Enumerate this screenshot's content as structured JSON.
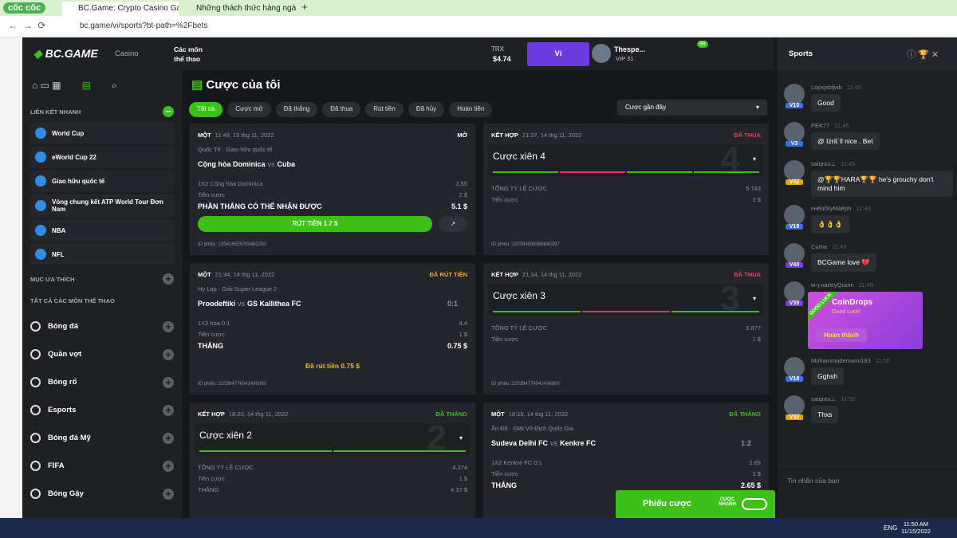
{
  "browser": {
    "brand": "cốc cốc",
    "tabs": [
      "BC.Game: Crypto Casino Gam",
      "Những thách thức hàng ngà"
    ],
    "url": "bc.game/vi/sports?bt-path=%2Fbets"
  },
  "header": {
    "logo": "BC.GAME",
    "casino": "Casino",
    "sports": "Các môn thể thao",
    "currency": "TRX",
    "balance": "$4.74",
    "wallet": "Ví",
    "user": "Thespe...",
    "vip": "VIP 31",
    "notifications": "99"
  },
  "sidebar": {
    "quick_title": "LIÊN KẾT NHANH",
    "quick_links": [
      "World Cup",
      "eWorld Cup 22",
      "Giao hữu quốc tế",
      "Vòng chung kết ATP World Tour Đơn Nam",
      "NBA",
      "NFL"
    ],
    "favorites": "MỤC ƯA THÍCH",
    "all_sports": "TẤT CẢ CÁC MÔN THỂ THAO",
    "sports": [
      "Bóng đá",
      "Quần vợt",
      "Bóng rổ",
      "Esports",
      "Bóng đá Mỹ",
      "FIFA",
      "Bóng Gậy"
    ]
  },
  "main": {
    "title": "Cược của tôi",
    "filters": [
      "Tất cả",
      "Cược mở",
      "Đã thắng",
      "Đã thua",
      "Rút tiền",
      "Đã hủy",
      "Hoàn tiền"
    ],
    "sort": "Cược gần đây",
    "cards": [
      {
        "type": "MỘT",
        "time": "11:48, 15 thg 11, 2022",
        "status": "MỞ",
        "status_color": "#ffffff",
        "league": "Quốc Tế · Giao hữu quốc tế",
        "home": "Cộng hòa Dominica",
        "vs": "vs",
        "away": "Cuba",
        "rows": [
          [
            "1X2 Cộng hòa Dominica",
            "2.55"
          ],
          [
            "Tiền cược",
            "2 $"
          ],
          [
            "PHẦN THẮNG CÓ THỂ NHẬN ĐƯỢC",
            "5.1 $"
          ]
        ],
        "button": "RÚT TIỀN 1.7 $",
        "id": "ID phiếu: 220416525705482250"
      },
      {
        "type": "KẾT HỢP",
        "time": "21:37, 14 thg 11, 2022",
        "status": "ĐÃ THUA",
        "status_color": "#ed3d5f",
        "name": "Cược xiên 4",
        "badge": "4",
        "legs": [
          "#3bc117",
          "#e2317b",
          "#3bc117",
          "#3bc117"
        ],
        "rows": [
          [
            "TỔNG TỶ LỆ CƯỢC",
            "5.743"
          ],
          [
            "Tiền cược",
            "1 $"
          ]
        ],
        "id": "ID phiếu: 220394836366840297"
      },
      {
        "type": "MỘT",
        "time": "21:34, 14 thg 11, 2022",
        "status": "ĐÃ RÚT TIỀN",
        "status_color": "#f5a524",
        "league": "Hy Lạp · Giải Super League 2",
        "home": "Proodeftiki",
        "vs": "vs",
        "away": "GS Kallithea FC",
        "score": "0:1",
        "rows": [
          [
            "1X2 hòa  0:1",
            "4.4"
          ],
          [
            "Tiền cược",
            "1 $"
          ],
          [
            "THẮNG",
            "0.75 $"
          ]
        ],
        "cashed": "Đã rút tiền 0.75 $",
        "id": "ID phiếu: 220394776041436093"
      },
      {
        "type": "KẾT HỢP",
        "time": "21:34, 14 thg 11, 2022",
        "status": "ĐÃ THUA",
        "status_color": "#ed3d5f",
        "name": "Cược xiên 3",
        "badge": "3",
        "legs": [
          "#3bc117",
          "#e2317b",
          "#3bc117"
        ],
        "rows": [
          [
            "TỔNG TỶ LỆ CƯỢC",
            "6.877"
          ],
          [
            "Tiền cược",
            "1 $"
          ]
        ],
        "id": "ID phiếu: 220394776041436800"
      },
      {
        "type": "KẾT HỢP",
        "time": "18:20, 14 thg 11, 2022",
        "status": "ĐÃ THẮNG",
        "status_color": "#3bc117",
        "name": "Cược xiên 2",
        "badge": "2",
        "legs": [
          "#3bc117",
          "#3bc117"
        ],
        "rows": [
          [
            "TỔNG TỶ LỆ CƯỢC",
            "4.374"
          ],
          [
            "Tiền cược",
            "1 $"
          ],
          [
            "THẮNG",
            "4.37 $"
          ]
        ]
      },
      {
        "type": "MỘT",
        "time": "18:19, 14 thg 11, 2022",
        "status": "ĐÃ THẮNG",
        "status_color": "#3bc117",
        "league": "Ấn Độ · Giải Vô Địch Quốc Gia",
        "home": "Sudeva Delhi FC",
        "vs": "vs",
        "away": "Kenkre FC",
        "score": "1:2",
        "rows": [
          [
            "1X2 Kenkre FC  0:1",
            "2.65"
          ],
          [
            "Tiền cược",
            "1 $"
          ],
          [
            "THẮNG",
            "2.65 $"
          ]
        ]
      }
    ]
  },
  "chat": {
    "tab": "Sports",
    "messages": [
      {
        "user": "Lopxjxbljwb",
        "level": "V10",
        "badge_color": "#3b6fe0",
        "time": "11:45",
        "text": "Good"
      },
      {
        "user": "PEK77",
        "level": "V3",
        "badge_color": "#3b6fe0",
        "time": "11:45",
        "text": "@ Izrã`ll nice . Bet"
      },
      {
        "user": "saiqnoɹ⊥",
        "level": "V32",
        "badge_color": "#e0a800",
        "time": "11:45",
        "text": "@🏆🏆HARA🏆🏆 he's grouchy don't mind him"
      },
      {
        "user": "ᴘʜếüčkyMàếph",
        "level": "V18",
        "badge_color": "#3b6fe0",
        "time": "11:49",
        "text": "👌👌👌"
      },
      {
        "user": "Cuma",
        "level": "V40",
        "badge_color": "#7b3fe0",
        "time": "11:49",
        "text": "BCGame love 💔"
      },
      {
        "user": "м-ɿ-ʌarleyQuɪnn",
        "level": "V39",
        "badge_color": "#7b3fe0",
        "time": "11:49"
      },
      {
        "user": "Mohammademami183",
        "level": "V18",
        "badge_color": "#3b6fe0",
        "time": "11:50",
        "text": "Gghsh"
      },
      {
        "user": "saiqnoɹ⊥",
        "level": "V32",
        "badge_color": "#e0a800",
        "time": "11:50",
        "text": "Thxs"
      }
    ],
    "coindrop": {
      "ribbon": "GOOD LUCK",
      "title": "CoinDrops",
      "subtitle": "Good Luck!",
      "button": "Hoàn thành"
    },
    "input": "Tin nhắn của bạn"
  },
  "betslip": {
    "label": "Phiếu cược",
    "quick": "CƯỢC NHANH"
  },
  "taskbar": {
    "lang": "ENG",
    "time": "11:50 AM",
    "date": "11/15/2022"
  }
}
